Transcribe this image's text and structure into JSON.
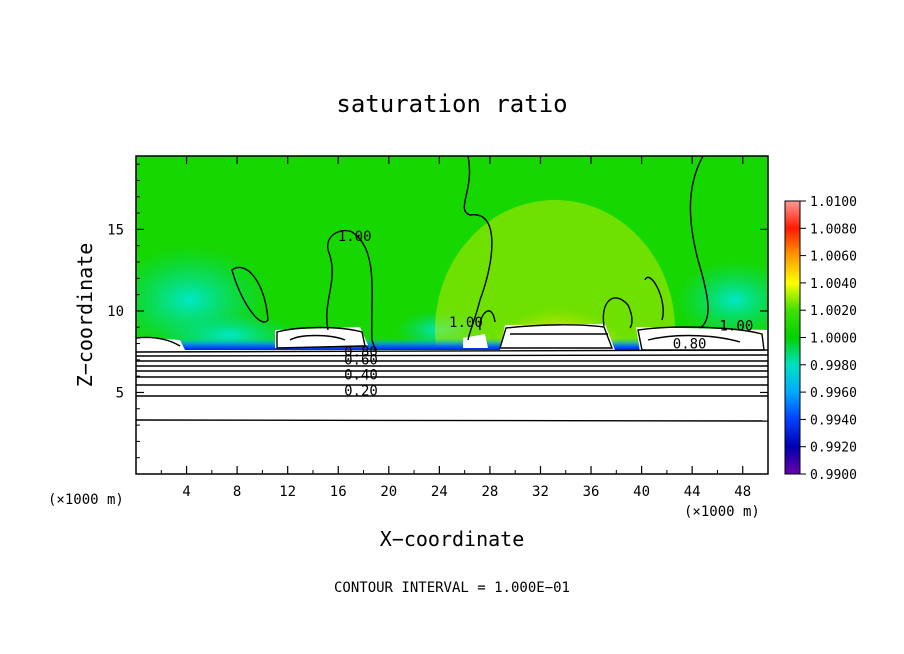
{
  "chart_data": {
    "type": "heatmap",
    "title": "saturation ratio",
    "xlabel": "X−coordinate",
    "ylabel": "Z−coordinate",
    "x_unit": "(×1000 m)",
    "x_unit_right": "(×1000 m)",
    "xlim": [
      0,
      50
    ],
    "ylim": [
      0,
      19.5
    ],
    "x_ticks": [
      4,
      8,
      12,
      16,
      20,
      24,
      28,
      32,
      36,
      40,
      44,
      48
    ],
    "y_ticks": [
      5,
      10,
      15
    ],
    "colorbar": {
      "range": [
        0.99,
        1.01
      ],
      "ticks": [
        "1.0100",
        "1.0080",
        "1.0060",
        "1.0040",
        "1.0020",
        "1.0000",
        "0.9980",
        "0.9960",
        "0.9940",
        "0.9920",
        "0.9900"
      ]
    },
    "contour_labels": [
      {
        "text": "1.00",
        "x": 17.3,
        "y": 14.3
      },
      {
        "text": "1.00",
        "x": 26.1,
        "y": 9.0
      },
      {
        "text": "1.00",
        "x": 47.5,
        "y": 8.8
      },
      {
        "text": "0.80",
        "x": 43.8,
        "y": 7.7
      },
      {
        "text": "0.80",
        "x": 17.8,
        "y": 7.2
      },
      {
        "text": "0.60",
        "x": 17.8,
        "y": 6.7
      },
      {
        "text": "0.40",
        "x": 17.8,
        "y": 5.8
      },
      {
        "text": "0.20",
        "x": 17.8,
        "y": 4.8
      }
    ],
    "footer": "CONTOUR INTERVAL = 1.000E−01"
  }
}
